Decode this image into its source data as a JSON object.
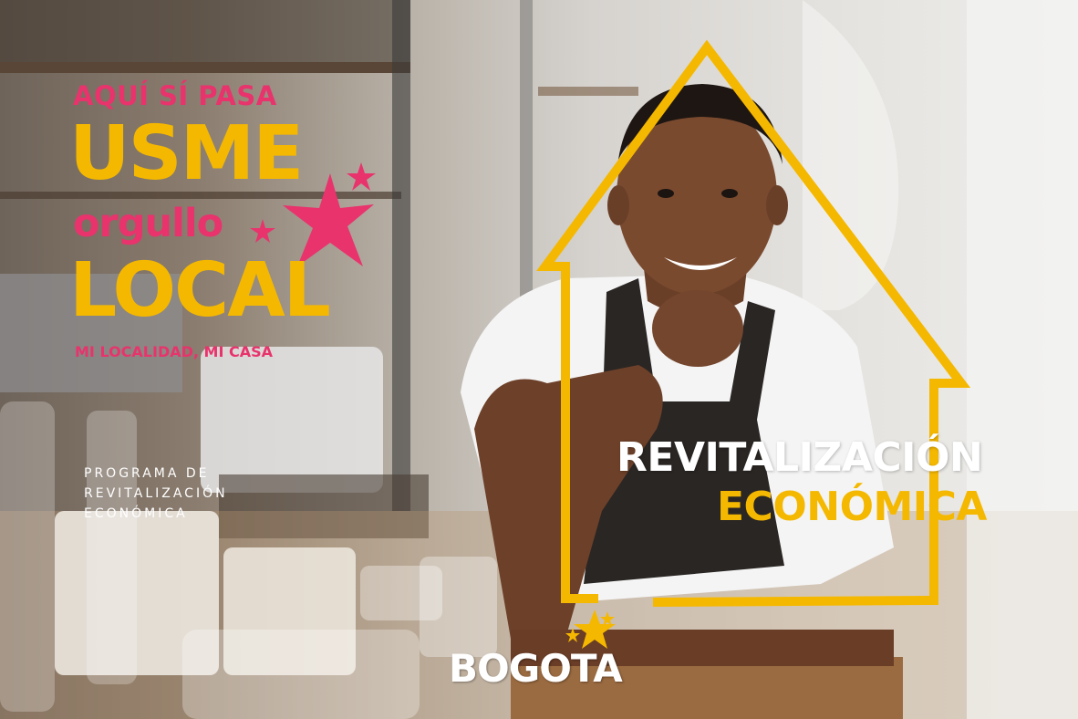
{
  "headline": {
    "tagline": "AQUÍ SÍ PASA",
    "usme": "USME",
    "orgullo": "orgullo",
    "local": "LOCAL",
    "slogan": "MI LOCALIDAD, MI CASA"
  },
  "program": {
    "lines": [
      "PROGRAMA DE",
      "REVITALIZACIÓN",
      "ECONÓMICA"
    ]
  },
  "title": {
    "line1": "REVITALIZACIÓN",
    "line2": "ECONÓMICA"
  },
  "logo": {
    "text": "BOGOTA"
  },
  "colors": {
    "pink": "#e8336d",
    "yellow": "#f5b800",
    "white": "#ffffff"
  },
  "icons": [
    "star-icon",
    "house-outline",
    "bogota-star-icon"
  ]
}
